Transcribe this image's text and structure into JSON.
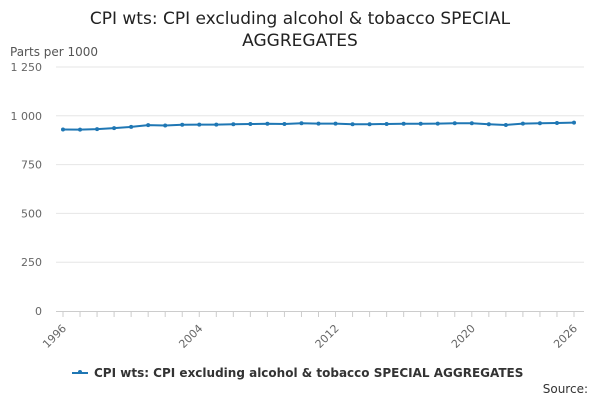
{
  "chart_data": {
    "type": "line",
    "title": "CPI wts: CPI excluding alcohol & tobacco SPECIAL AGGREGATES",
    "ylabel": "Parts per 1000",
    "xlabel": "",
    "ylim": [
      0,
      1250
    ],
    "yticks": [
      0,
      250,
      500,
      750,
      1000,
      1250
    ],
    "ytick_labels": [
      "0",
      "250",
      "500",
      "750",
      "1 000",
      "1 250"
    ],
    "xlim": [
      1996,
      2026
    ],
    "xticks": [
      1996,
      2004,
      2012,
      2020,
      2026
    ],
    "xtick_labels": [
      "1996",
      "2004",
      "2012",
      "2020",
      "2026"
    ],
    "grid": true,
    "legend_position": "bottom",
    "series": [
      {
        "name": "CPI wts: CPI excluding alcohol & tobacco SPECIAL AGGREGATES",
        "color": "#1f77b4",
        "x": [
          1996,
          1997,
          1998,
          1999,
          2000,
          2001,
          2002,
          2003,
          2004,
          2005,
          2006,
          2007,
          2008,
          2009,
          2010,
          2011,
          2012,
          2013,
          2014,
          2015,
          2016,
          2017,
          2018,
          2019,
          2020,
          2021,
          2022,
          2023,
          2024,
          2025,
          2026
        ],
        "values": [
          930,
          929,
          932,
          937,
          943,
          952,
          950,
          954,
          955,
          955,
          957,
          958,
          959,
          958,
          962,
          960,
          960,
          957,
          957,
          958,
          959,
          959,
          960,
          962,
          962,
          957,
          953,
          960,
          962,
          963,
          965
        ]
      }
    ]
  },
  "source_label": "Source:"
}
